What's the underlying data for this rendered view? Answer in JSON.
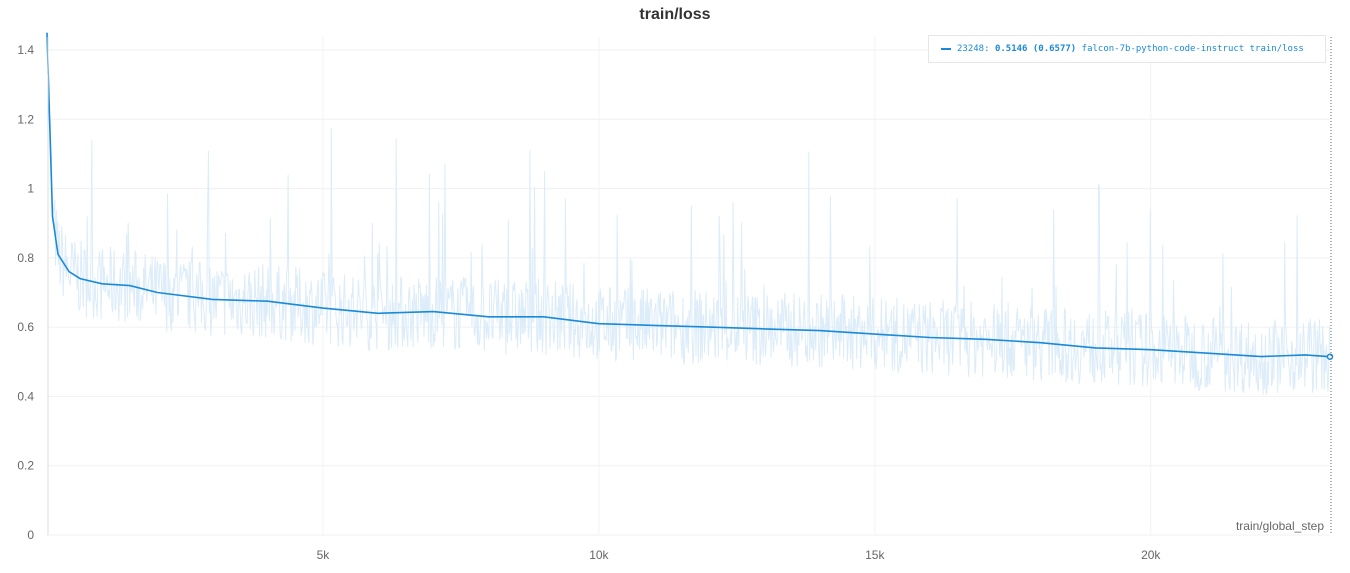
{
  "chart_data": {
    "type": "line",
    "title": "train/loss",
    "xlabel": "train/global_step",
    "ylabel": "",
    "xlim": [
      0,
      23248
    ],
    "ylim": [
      0,
      1.45
    ],
    "grid": true,
    "legend_position": "top-right",
    "x_ticks": [
      {
        "v": 5000,
        "label": "5k"
      },
      {
        "v": 10000,
        "label": "10k"
      },
      {
        "v": 15000,
        "label": "15k"
      },
      {
        "v": 20000,
        "label": "20k"
      }
    ],
    "y_ticks": [
      {
        "v": 0,
        "label": "0"
      },
      {
        "v": 0.2,
        "label": "0.2"
      },
      {
        "v": 0.4,
        "label": "0.4"
      },
      {
        "v": 0.6,
        "label": "0.6"
      },
      {
        "v": 0.8,
        "label": "0.8"
      },
      {
        "v": 1,
        "label": "1"
      },
      {
        "v": 1.2,
        "label": "1.2"
      },
      {
        "v": 1.4,
        "label": "1.4"
      }
    ],
    "colors": {
      "smoothed": "#1a8ad8",
      "raw": "#dcecf9"
    },
    "series": [
      {
        "name": "falcon-7b-python-code-instruct train/loss",
        "smoothed": [
          [
            0,
            1.45
          ],
          [
            100,
            0.92
          ],
          [
            200,
            0.81
          ],
          [
            400,
            0.76
          ],
          [
            600,
            0.74
          ],
          [
            1000,
            0.725
          ],
          [
            1500,
            0.72
          ],
          [
            2000,
            0.7
          ],
          [
            3000,
            0.68
          ],
          [
            4000,
            0.675
          ],
          [
            5000,
            0.655
          ],
          [
            6000,
            0.64
          ],
          [
            7000,
            0.645
          ],
          [
            8000,
            0.63
          ],
          [
            9000,
            0.63
          ],
          [
            10000,
            0.61
          ],
          [
            11000,
            0.605
          ],
          [
            12000,
            0.6
          ],
          [
            13000,
            0.595
          ],
          [
            14000,
            0.59
          ],
          [
            15000,
            0.58
          ],
          [
            16000,
            0.57
          ],
          [
            17000,
            0.565
          ],
          [
            18000,
            0.555
          ],
          [
            19000,
            0.54
          ],
          [
            20000,
            0.535
          ],
          [
            21000,
            0.525
          ],
          [
            22000,
            0.515
          ],
          [
            22800,
            0.52
          ],
          [
            23248,
            0.5146
          ]
        ]
      }
    ],
    "legend": {
      "step": "23248:",
      "value": "0.5146",
      "raw_value": "(0.6577)",
      "label": "falcon-7b-python-code-instruct train/loss"
    }
  }
}
